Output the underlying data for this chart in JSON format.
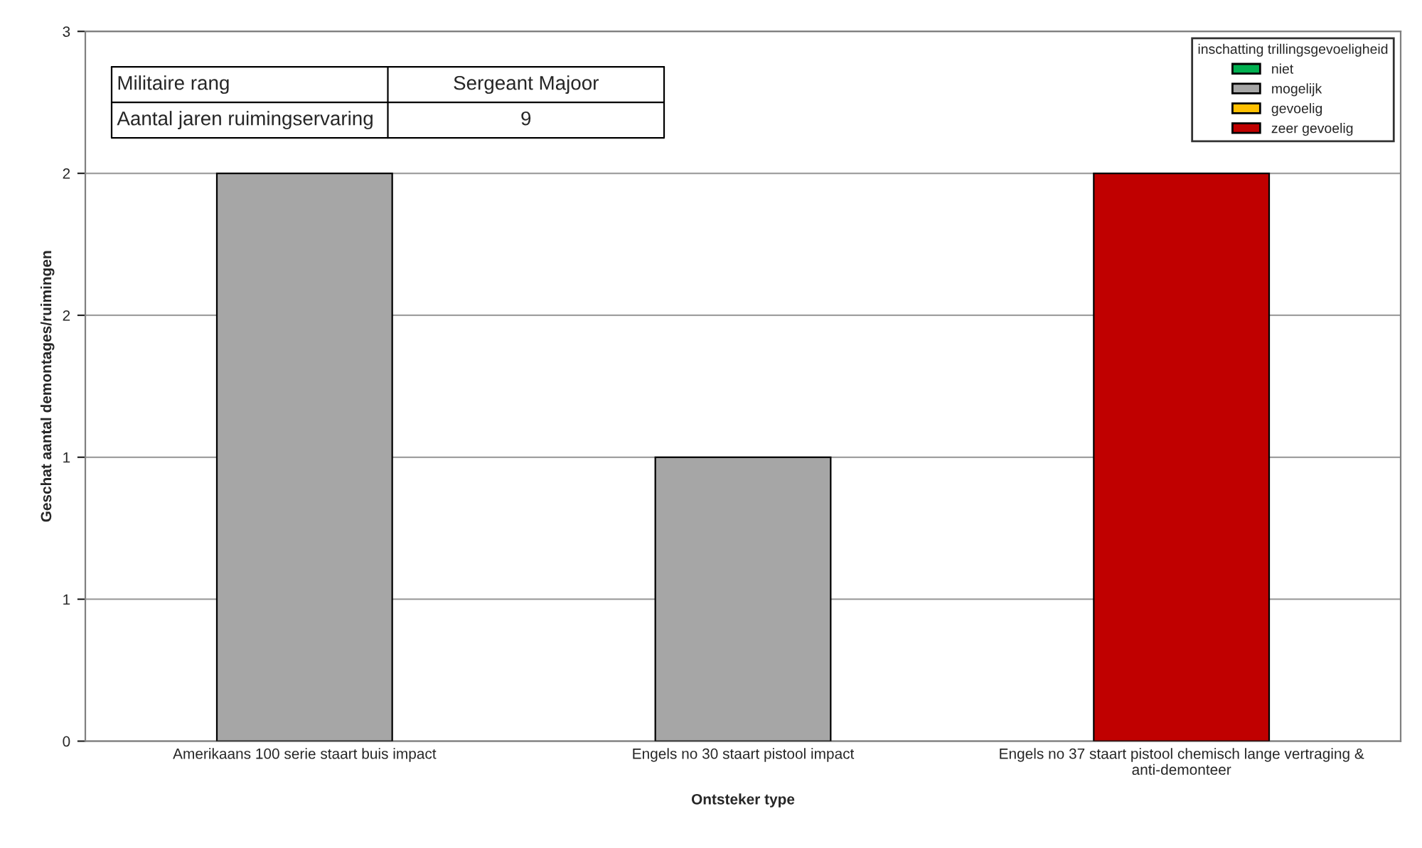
{
  "chart_data": {
    "type": "bar",
    "xlabel": "Ontsteker type",
    "ylabel": "Geschat aantal demontages/ruimingen",
    "categories": [
      "Amerikaans 100 serie staart buis impact",
      "Engels no 30 staart pistool impact",
      "Engels no 37 staart pistool chemisch lange vertraging &\nanti-demonteer"
    ],
    "series": [
      {
        "name": "niet",
        "color": "#00b050",
        "values": [
          null,
          null,
          null
        ]
      },
      {
        "name": "mogelijk",
        "color": "#a6a6a6",
        "values": [
          2.4,
          1.2,
          null
        ]
      },
      {
        "name": "gevoelig",
        "color": "#ffc000",
        "values": [
          null,
          null,
          null
        ]
      },
      {
        "name": "zeer gevoelig",
        "color": "#c00000",
        "values": [
          null,
          null,
          2.4
        ]
      }
    ],
    "legend_title": "inschatting trillingsgevoeligheid",
    "legend": "top right",
    "ylim": [
      0,
      3
    ],
    "yticks": [
      0,
      {
        "value": 0.6,
        "label": "1"
      },
      {
        "value": 1.2,
        "label": "1"
      },
      {
        "value": 1.8,
        "label": "2"
      },
      {
        "value": 2.4,
        "label": "2"
      },
      3
    ],
    "grid": "y",
    "annotations": [
      "Militaire rang",
      "Sergeant Majoor",
      "Aantal jaren ruimingservaring",
      "9"
    ]
  }
}
